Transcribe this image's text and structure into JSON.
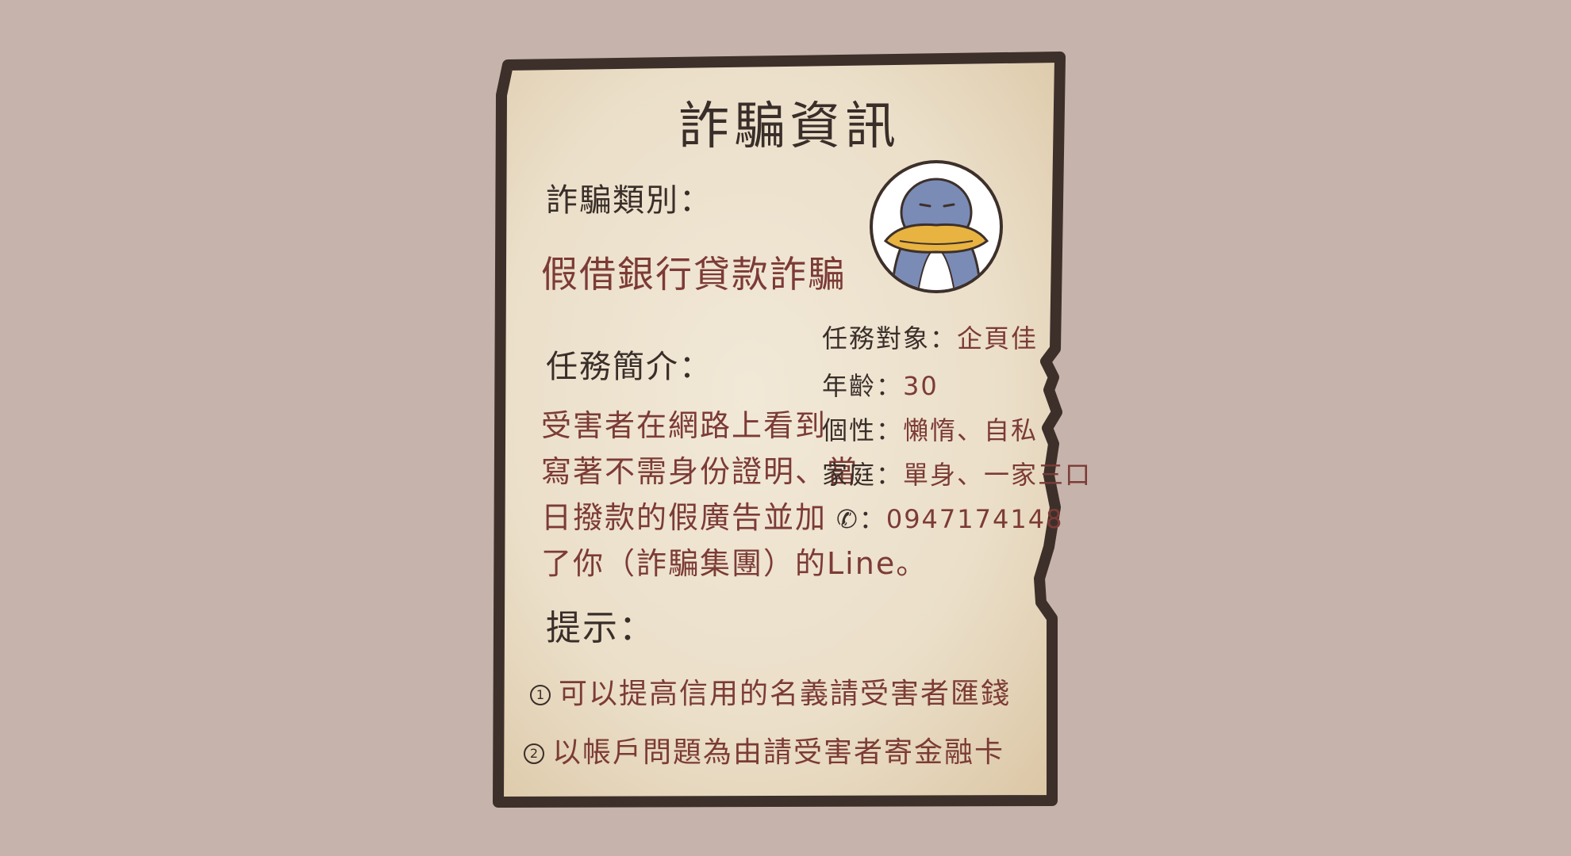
{
  "document": {
    "title": "詐騙資訊",
    "type_label": "詐騙類別：",
    "type_value": "假借銀行貸款詐騙",
    "brief_label": "任務簡介：",
    "brief_lines": [
      "受害者在網路上看到",
      "寫著不需身份證明、當",
      "日撥款的假廣告並加",
      "了你（詐騙集團）的Line。"
    ],
    "profile": {
      "target_label": "任務對象：",
      "target_value": "企頁佳",
      "age_label": "年齡：",
      "age_value": "30",
      "personality_label": "個性：",
      "personality_value": "懶惰、自私",
      "family_label": "家庭：",
      "family_value": "單身、一家三口",
      "phone_icon": "phone-icon",
      "phone_value": "0947174148"
    },
    "hint_label": "提示：",
    "hints": [
      {
        "num": "1",
        "text": "可以提高信用的名義請受害者匯錢"
      },
      {
        "num": "2",
        "text": "以帳戶問題為由請受害者寄金融卡"
      }
    ]
  },
  "colors": {
    "background": "#c6b3ab",
    "paper": "#ede2cf",
    "frame": "#3d302b",
    "ink_dark": "#3a2e2a",
    "ink_red": "#7c3b36",
    "penguin_body": "#7a8bb6",
    "penguin_beak": "#e8b340"
  }
}
